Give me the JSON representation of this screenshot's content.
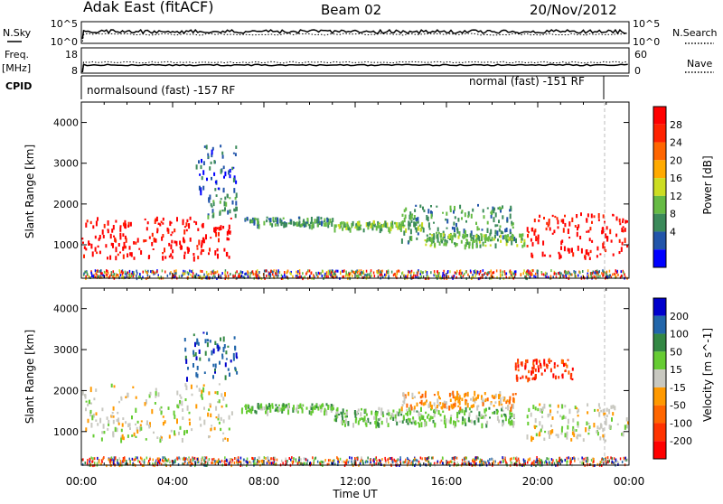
{
  "header": {
    "station": "Adak East (fitACF)",
    "beam": "Beam 02",
    "date": "20/Nov/2012"
  },
  "noise_panel": {
    "left_label": "N.Sky",
    "right_label": "N.Search",
    "left_ticks": [
      "10^5",
      "10^0"
    ],
    "right_ticks": [
      "10^5",
      "10^0"
    ]
  },
  "freq_panel": {
    "left_label_top": "Freq.",
    "left_label_unit": "[MHz]",
    "right_label": "Nave",
    "left_ticks": [
      "18",
      "8"
    ],
    "right_ticks": [
      "60",
      "0"
    ]
  },
  "cpid_panel": {
    "label": "CPID",
    "mode_left": "normalsound (fast) -157 RF",
    "mode_right": "normal (fast) -151 RF"
  },
  "range_ticks": [
    "4000",
    "3000",
    "2000",
    "1000"
  ],
  "y_label": "Slant Range [km]",
  "x_label": "Time UT",
  "x_ticks": [
    "00:00",
    "04:00",
    "08:00",
    "12:00",
    "16:00",
    "20:00",
    "00:00"
  ],
  "colors": {
    "power": [
      "#0000ff",
      "#2255aa",
      "#3b8a5a",
      "#66bb44",
      "#ccdd22",
      "#ffaa00",
      "#ff6600",
      "#ff2200",
      "#ff0000"
    ],
    "velocity": [
      "#0000cc",
      "#2266aa",
      "#338844",
      "#66cc33",
      "#c8c8c0",
      "#ff9900",
      "#ff6600",
      "#ff3300",
      "#ff0000"
    ]
  },
  "chart_data": [
    {
      "type": "heatmap",
      "title": "",
      "xlabel": "Time UT",
      "ylabel": "Slant Range [km]",
      "x_range_hours": [
        0,
        24
      ],
      "ylim": [
        180,
        4500
      ],
      "colorbar_label": "Power [dB]",
      "colorbar_ticks": [
        "28",
        "24",
        "20",
        "16",
        "12",
        "8",
        "4"
      ],
      "regions": [
        {
          "t0": 0.0,
          "t1": 6.6,
          "r0": 700,
          "r1": 1700,
          "level": 8
        },
        {
          "t0": 5.5,
          "t1": 6.8,
          "r0": 1700,
          "r1": 2300,
          "level": 2
        },
        {
          "t0": 5.0,
          "t1": 6.8,
          "r0": 2300,
          "r1": 3500,
          "level": 1
        },
        {
          "t0": 7.0,
          "t1": 11.0,
          "r0": 1500,
          "r1": 1700,
          "level": 2
        },
        {
          "t0": 11.0,
          "t1": 15.0,
          "r0": 1400,
          "r1": 1600,
          "level": 3
        },
        {
          "t0": 14.0,
          "t1": 19.0,
          "r0": 1100,
          "r1": 2000,
          "level": 2
        },
        {
          "t0": 15.0,
          "t1": 19.5,
          "r0": 1000,
          "r1": 1300,
          "level": 3
        },
        {
          "t0": 19.5,
          "t1": 24.0,
          "r0": 700,
          "r1": 1800,
          "level": 8
        }
      ]
    },
    {
      "type": "heatmap",
      "title": "",
      "xlabel": "Time UT",
      "ylabel": "Slant Range [km]",
      "x_range_hours": [
        0,
        24
      ],
      "ylim": [
        180,
        4500
      ],
      "colorbar_label": "Velocity [m s^-1]",
      "colorbar_ticks": [
        "200",
        "100",
        "50",
        "15",
        "-15",
        "-50",
        "-100",
        "-200"
      ],
      "regions": [
        {
          "t0": 0.0,
          "t1": 6.6,
          "r0": 800,
          "r1": 2200,
          "level": 4
        },
        {
          "t0": 4.5,
          "t1": 6.8,
          "r0": 2300,
          "r1": 3500,
          "level": 1
        },
        {
          "t0": 7.0,
          "t1": 11.0,
          "r0": 1500,
          "r1": 1700,
          "level": 3
        },
        {
          "t0": 11.0,
          "t1": 19.0,
          "r0": 1200,
          "r1": 1600,
          "level": 3
        },
        {
          "t0": 14.0,
          "t1": 19.0,
          "r0": 1600,
          "r1": 2000,
          "level": 5
        },
        {
          "t0": 19.5,
          "t1": 24.0,
          "r0": 800,
          "r1": 1700,
          "level": 4
        },
        {
          "t0": 19.0,
          "t1": 21.5,
          "r0": 2300,
          "r1": 2800,
          "level": 7
        }
      ]
    }
  ]
}
